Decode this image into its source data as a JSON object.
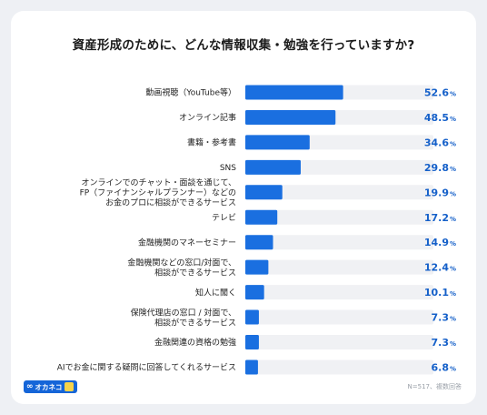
{
  "title": "資産形成のために、どんな情報収集・勉強を行っていますか?",
  "footnote": "N=517、複数回答",
  "brand": {
    "mark": "∞",
    "name": "オカネコ"
  },
  "colors": {
    "bar": "#1a6fe0",
    "track": "#f0f1f4",
    "value": "#1560c9"
  },
  "chart_data": {
    "type": "bar",
    "orientation": "horizontal",
    "value_unit": "%",
    "xlim": [
      0,
      100
    ],
    "grid": false,
    "categories": [
      [
        "動画視聴（YouTube等）"
      ],
      [
        "オンライン記事"
      ],
      [
        "書籍・参考書"
      ],
      [
        "SNS"
      ],
      [
        "オンラインでのチャット・面談を通じて、",
        "FP（ファイナンシャルプランナー）などの",
        "お金のプロに相談ができるサービス"
      ],
      [
        "テレビ"
      ],
      [
        "金融機関のマネーセミナー"
      ],
      [
        "金融機関などの窓口/対面で、",
        "相談ができるサービス"
      ],
      [
        "知人に聞く"
      ],
      [
        "保険代理店の窓口 / 対面で、",
        "相談ができるサービス"
      ],
      [
        "金融関連の資格の勉強"
      ],
      [
        "AIでお金に関する疑問に回答してくれるサービス"
      ]
    ],
    "values": [
      52.6,
      48.5,
      34.6,
      29.8,
      19.9,
      17.2,
      14.9,
      12.4,
      10.1,
      7.3,
      7.3,
      6.8
    ]
  }
}
